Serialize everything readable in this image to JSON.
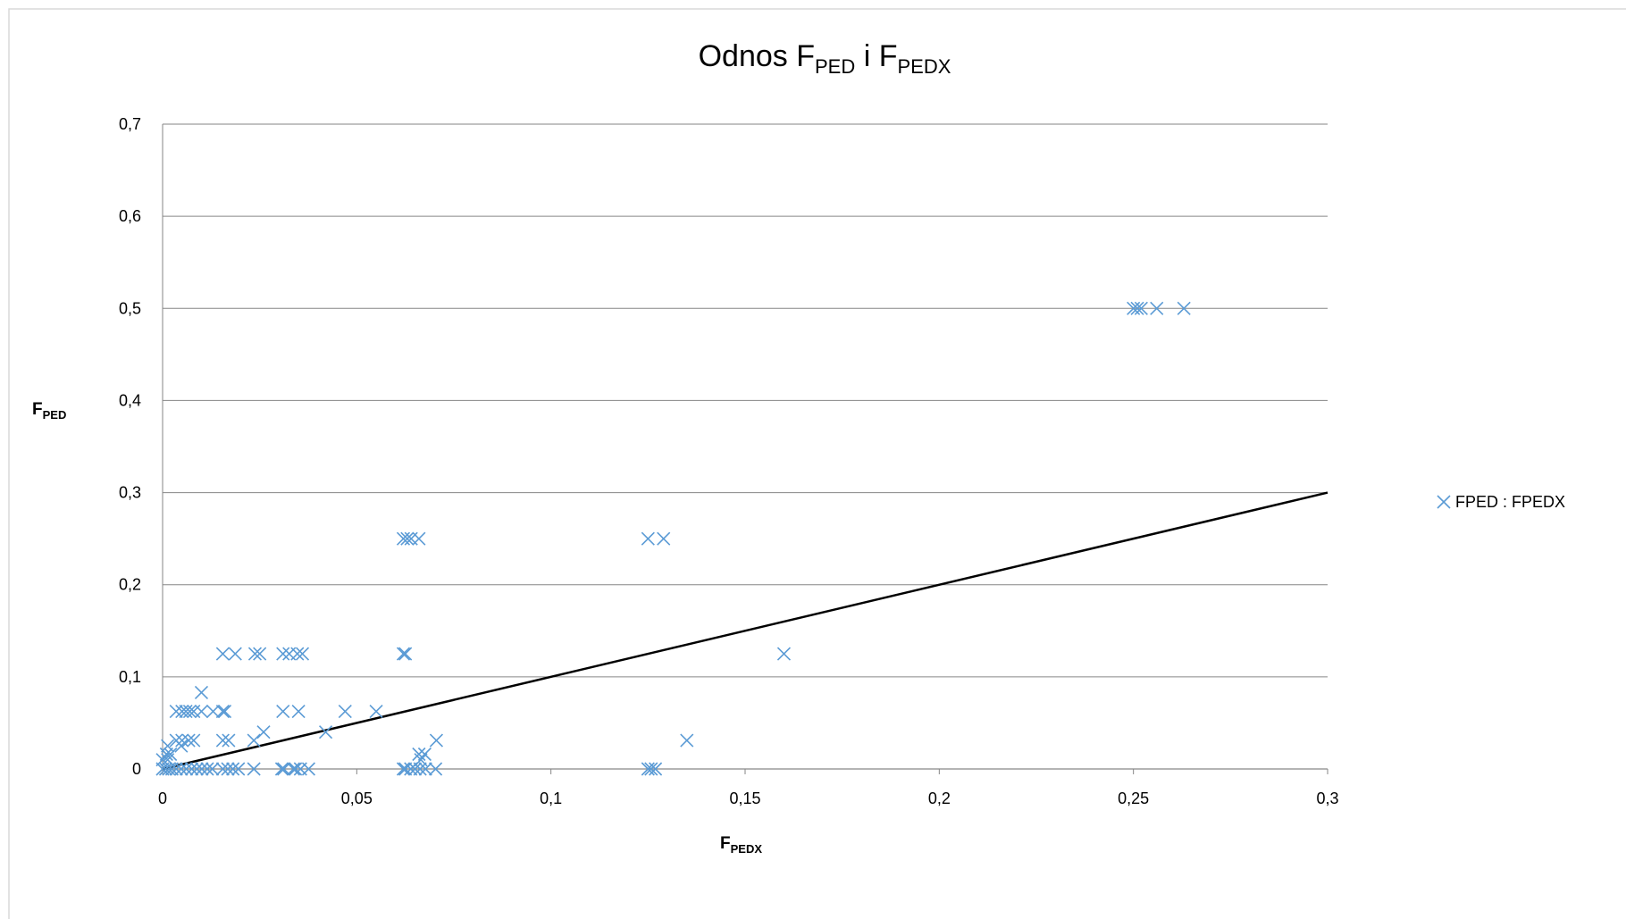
{
  "chart_data": {
    "type": "scatter",
    "title": [
      "Odnos F",
      "PED",
      " i F",
      "PEDX"
    ],
    "xlabel": [
      "F",
      "PEDX"
    ],
    "ylabel": [
      "F",
      "PED"
    ],
    "xlim": [
      0,
      0.3
    ],
    "ylim": [
      0,
      0.7
    ],
    "xticks": [
      0,
      {
        "value": 0.05,
        "label": "0,05"
      },
      {
        "value": 0.1,
        "label": "0,1"
      },
      {
        "value": 0.15,
        "label": "0,15"
      },
      {
        "value": 0.2,
        "label": "0,2"
      },
      {
        "value": 0.25,
        "label": "0,25"
      },
      {
        "value": 0.3,
        "label": "0,3"
      }
    ],
    "yticks": [
      0,
      {
        "value": 0.1,
        "label": "0,1"
      },
      {
        "value": 0.2,
        "label": "0,2"
      },
      {
        "value": 0.3,
        "label": "0,3"
      },
      {
        "value": 0.4,
        "label": "0,4"
      },
      {
        "value": 0.5,
        "label": "0,5"
      },
      {
        "value": 0.6,
        "label": "0,6"
      },
      {
        "value": 0.7,
        "label": "0,7"
      }
    ],
    "grid": true,
    "legend": "right",
    "series": [
      {
        "name": "FPED : FPEDX",
        "color": "#5b9bd5",
        "x": [
          0.25,
          0.251,
          0.252,
          0.256,
          0.263,
          0.062,
          0.063,
          0.064,
          0.066,
          0.125,
          0.129,
          0.0155,
          0.0187,
          0.0238,
          0.025,
          0.031,
          0.0326,
          0.0347,
          0.036,
          0.062,
          0.0625,
          0.16,
          0.0035,
          0.005,
          0.006,
          0.007,
          0.008,
          0.01,
          0.013,
          0.0155,
          0.016,
          0.031,
          0.035,
          0.047,
          0.055,
          0.01,
          0.026,
          0.042,
          0.0035,
          0.005,
          0.0067,
          0.008,
          0.0155,
          0.017,
          0.0235,
          0.0705,
          0.135,
          0.0013,
          0.0048,
          0.001,
          0.002,
          0.066,
          0.0675,
          0.0665,
          0.0,
          0.0013,
          0.0,
          0.0008,
          0.0016,
          0.0024,
          0.0035,
          0.0048,
          0.0061,
          0.0075,
          0.0088,
          0.0101,
          0.0115,
          0.0128,
          0.0155,
          0.0168,
          0.0181,
          0.0195,
          0.0235,
          0.0307,
          0.0312,
          0.0337,
          0.0342,
          0.0355,
          0.0376,
          0.062,
          0.0625,
          0.0639,
          0.065,
          0.0663,
          0.0677,
          0.0703,
          0.125,
          0.1258,
          0.1269
        ],
        "y": [
          0.5,
          0.5,
          0.5,
          0.5,
          0.5,
          0.25,
          0.25,
          0.25,
          0.25,
          0.25,
          0.25,
          0.125,
          0.125,
          0.125,
          0.125,
          0.125,
          0.125,
          0.125,
          0.125,
          0.125,
          0.125,
          0.125,
          0.0625,
          0.0625,
          0.0625,
          0.0625,
          0.0625,
          0.0625,
          0.0625,
          0.0625,
          0.0625,
          0.0625,
          0.0625,
          0.0625,
          0.0625,
          0.083,
          0.04,
          0.04,
          0.031,
          0.031,
          0.031,
          0.031,
          0.031,
          0.031,
          0.031,
          0.031,
          0.031,
          0.025,
          0.025,
          0.016,
          0.016,
          0.016,
          0.016,
          0.01,
          0.01,
          0.01,
          0,
          0,
          0,
          0,
          0,
          0,
          0,
          0,
          0,
          0,
          0,
          0,
          0,
          0,
          0,
          0,
          0,
          0,
          0,
          0,
          0,
          0,
          0,
          0,
          0,
          0,
          0,
          0,
          0,
          0,
          0,
          0,
          0
        ]
      }
    ],
    "reference_line": {
      "x": [
        0,
        0.3
      ],
      "y": [
        0,
        0.3
      ],
      "color": "#000000"
    }
  }
}
